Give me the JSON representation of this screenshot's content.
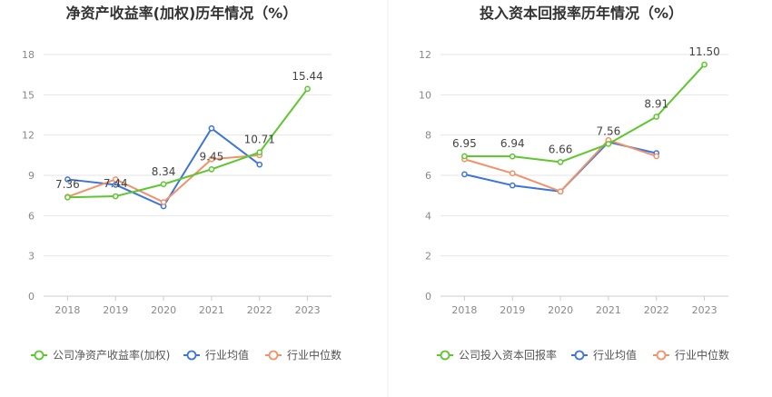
{
  "colors": {
    "company": "#5cc72e",
    "industry_avg": "#3d74d9",
    "industry_median": "#f0926a",
    "grid": "#e6e6e6",
    "axis": "#cccccc",
    "divider": "#eeeeee"
  },
  "chart_data": [
    {
      "type": "line",
      "title": "净资产收益率(加权)历年情况（%）",
      "categories": [
        "2018",
        "2019",
        "2020",
        "2021",
        "2022",
        "2023"
      ],
      "ylim": [
        0,
        18
      ],
      "yticks": [
        0,
        3,
        6,
        9,
        12,
        15,
        18
      ],
      "grid": true,
      "legend_position": "bottom-left",
      "series": [
        {
          "key": "company",
          "name": "公司净资产收益率(加权)",
          "values": [
            7.36,
            7.44,
            8.34,
            9.45,
            10.71,
            15.44
          ],
          "labels": [
            "7.36",
            "7.44",
            "8.34",
            "9.45",
            "10.71",
            "15.44"
          ]
        },
        {
          "key": "industry_avg",
          "name": "行业均值",
          "values": [
            8.7,
            8.3,
            6.7,
            12.5,
            9.8,
            null
          ]
        },
        {
          "key": "industry_median",
          "name": "行业中位数",
          "values": [
            7.4,
            8.7,
            7.0,
            10.2,
            10.5,
            null
          ]
        }
      ]
    },
    {
      "type": "line",
      "title": "投入资本回报率历年情况（%）",
      "categories": [
        "2018",
        "2019",
        "2020",
        "2021",
        "2022",
        "2023"
      ],
      "ylim": [
        0,
        12
      ],
      "yticks": [
        0,
        2,
        4,
        6,
        8,
        10,
        12
      ],
      "grid": true,
      "legend_position": "bottom-left",
      "series": [
        {
          "key": "company",
          "name": "公司投入资本回报率",
          "values": [
            6.95,
            6.94,
            6.66,
            7.56,
            8.91,
            11.5
          ],
          "labels": [
            "6.95",
            "6.94",
            "6.66",
            "7.56",
            "8.91",
            "11.50"
          ]
        },
        {
          "key": "industry_avg",
          "name": "行业均值",
          "values": [
            6.05,
            5.5,
            5.2,
            7.65,
            7.1,
            null
          ]
        },
        {
          "key": "industry_median",
          "name": "行业中位数",
          "values": [
            6.8,
            6.1,
            5.2,
            7.75,
            6.95,
            null
          ]
        }
      ]
    }
  ]
}
